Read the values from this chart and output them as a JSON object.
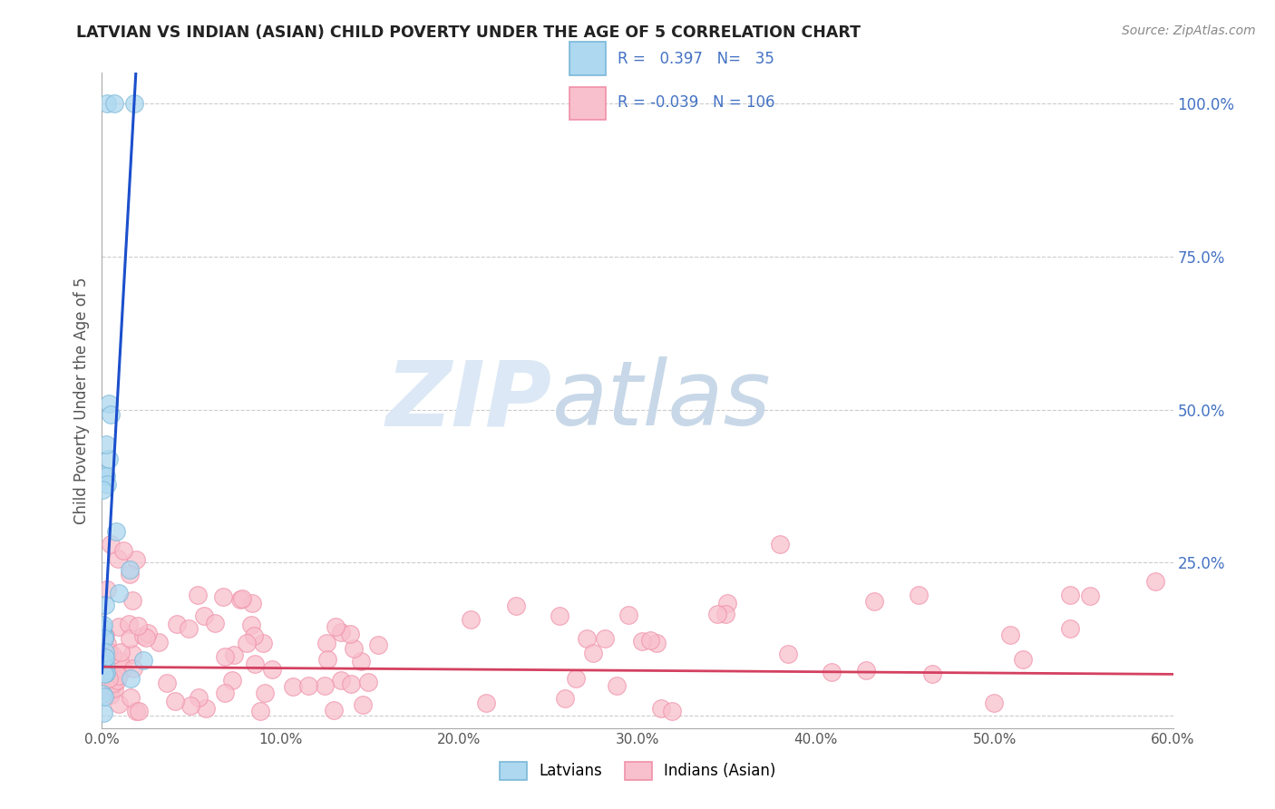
{
  "title": "LATVIAN VS INDIAN (ASIAN) CHILD POVERTY UNDER THE AGE OF 5 CORRELATION CHART",
  "source_text": "Source: ZipAtlas.com",
  "ylabel": "Child Poverty Under the Age of 5",
  "xlim": [
    0.0,
    0.6
  ],
  "ylim": [
    -0.02,
    1.05
  ],
  "xtick_labels": [
    "0.0%",
    "",
    "10.0%",
    "",
    "20.0%",
    "",
    "30.0%",
    "",
    "40.0%",
    "",
    "50.0%",
    "",
    "60.0%"
  ],
  "xtick_vals": [
    0.0,
    0.05,
    0.1,
    0.15,
    0.2,
    0.25,
    0.3,
    0.35,
    0.4,
    0.45,
    0.5,
    0.55,
    0.6
  ],
  "ytick_labels": [
    "",
    "25.0%",
    "50.0%",
    "75.0%",
    "100.0%"
  ],
  "ytick_vals": [
    0.0,
    0.25,
    0.5,
    0.75,
    1.0
  ],
  "latvian_color": "#ADD8F0",
  "indian_color": "#F8C0CC",
  "latvian_edge": "#7ab8d8",
  "indian_edge": "#f090a8",
  "trend_latvian_color": "#1B4FCC",
  "trend_indian_color": "#D44060",
  "legend_R_latvian": "0.397",
  "legend_N_latvian": "35",
  "legend_R_indian": "-0.039",
  "legend_N_indian": "106",
  "legend_label_latvian": "Latvians",
  "legend_label_indian": "Indians (Asian)",
  "watermark_line1": "ZIP",
  "watermark_line2": "atlas",
  "watermark_color": "#dce8f5",
  "background_color": "#ffffff",
  "grid_color": "#cccccc",
  "ytick_color": "#4472C4",
  "xtick_color": "#555555",
  "title_color": "#222222",
  "source_color": "#888888",
  "ylabel_color": "#555555"
}
